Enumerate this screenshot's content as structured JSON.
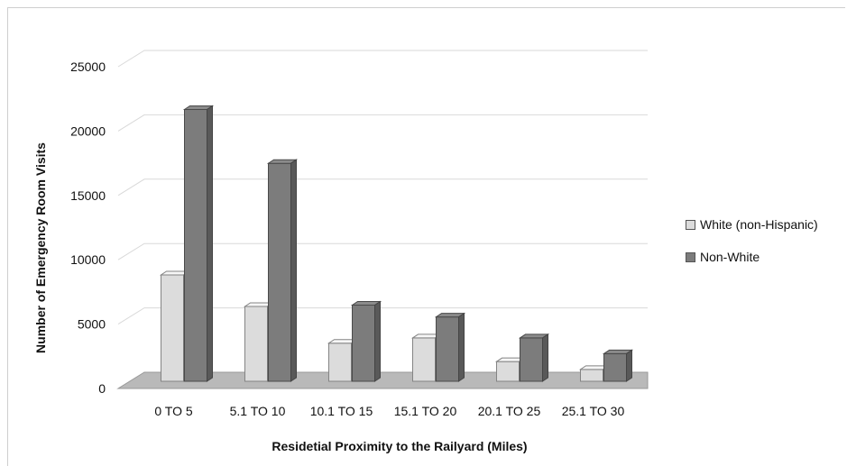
{
  "chart_data": {
    "type": "bar",
    "title": "",
    "xlabel": "Residetial Proximity to the Railyard  (Miles)",
    "ylabel": "Number of Emergency Room Visits",
    "categories": [
      "0 TO 5",
      "5.1 TO 10",
      "10.1 TO 15",
      "15.1 TO 20",
      "20.1 TO 25",
      "25.1 TO 30"
    ],
    "series": [
      {
        "name": "White (non-Hispanic)",
        "values": [
          8100,
          5700,
          2900,
          3300,
          1500,
          900
        ],
        "color": "#dcdcdc"
      },
      {
        "name": "Non-White",
        "values": [
          20700,
          16600,
          5800,
          4900,
          3300,
          2100
        ],
        "color": "#7c7c7c"
      }
    ],
    "ylim": [
      0,
      25000
    ],
    "yticks": [
      0,
      5000,
      10000,
      15000,
      20000,
      25000
    ],
    "grid": true,
    "legend_position": "right",
    "style": "3d-clustered-column"
  }
}
